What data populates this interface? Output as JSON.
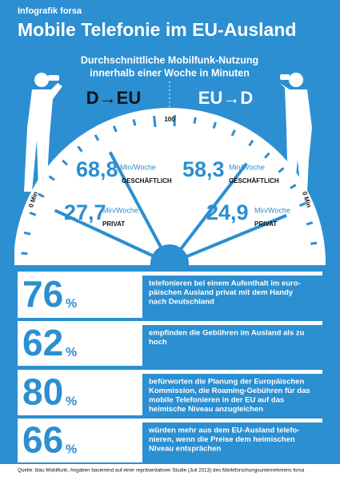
{
  "header": {
    "kicker": "Infografik forsa",
    "title": "Mobile Telefonie im EU-Ausland",
    "subtitle_lines": [
      "Durchschnittliche Mobilfunk-Nutzung",
      "innerhalb einer Woche in Minuten"
    ]
  },
  "gauge": {
    "scale": {
      "min": {
        "value": 0,
        "label": "0 Min"
      },
      "max": 100
    },
    "left": {
      "direction": "D→EU",
      "readings": [
        {
          "value": 68.8,
          "label": "68,8",
          "unit": "Min/Woche",
          "category": "GESCHÄFTLICH"
        },
        {
          "value": 27.7,
          "label": "27,7",
          "unit": "Min/Woche",
          "category": "PRIVAT"
        }
      ]
    },
    "right": {
      "direction": "EU→D",
      "readings": [
        {
          "value": 58.3,
          "label": "58,3",
          "unit": "Min/Woche",
          "category": "GESCHÄFTLICH"
        },
        {
          "value": 24.9,
          "label": "24,9",
          "unit": "Min/Woche",
          "category": "PRIVAT"
        }
      ]
    }
  },
  "stats": [
    {
      "number": "76",
      "unit": "%",
      "lines": [
        "telefonieren bei einem Aufenthalt im euro-",
        "päischen Ausland privat mit dem Handy",
        "nach Deutschland"
      ]
    },
    {
      "number": "62",
      "unit": "%",
      "lines": [
        "empfinden die Gebühren im Ausland als zu",
        "hoch"
      ]
    },
    {
      "number": "80",
      "unit": "%",
      "lines": [
        "befürworten die Planung der Europäischen",
        "Kommission, die Roaming-Gebühren für das",
        "mobile Telefonieren in der EU auf das",
        "heimische Niveau anzugleichen"
      ]
    },
    {
      "number": "66",
      "unit": "%",
      "lines": [
        "würden mehr aus dem EU-Ausland telefo-",
        "nieren, wenn die Preise dem heimischen",
        "Niveau entsprächen"
      ]
    }
  ],
  "footer": "Quelle: blau Mobilfunk, Angaben basierend auf einer repräsentativen Studie (Juli 2013) des Marktforschungsunternehmens forsa"
}
